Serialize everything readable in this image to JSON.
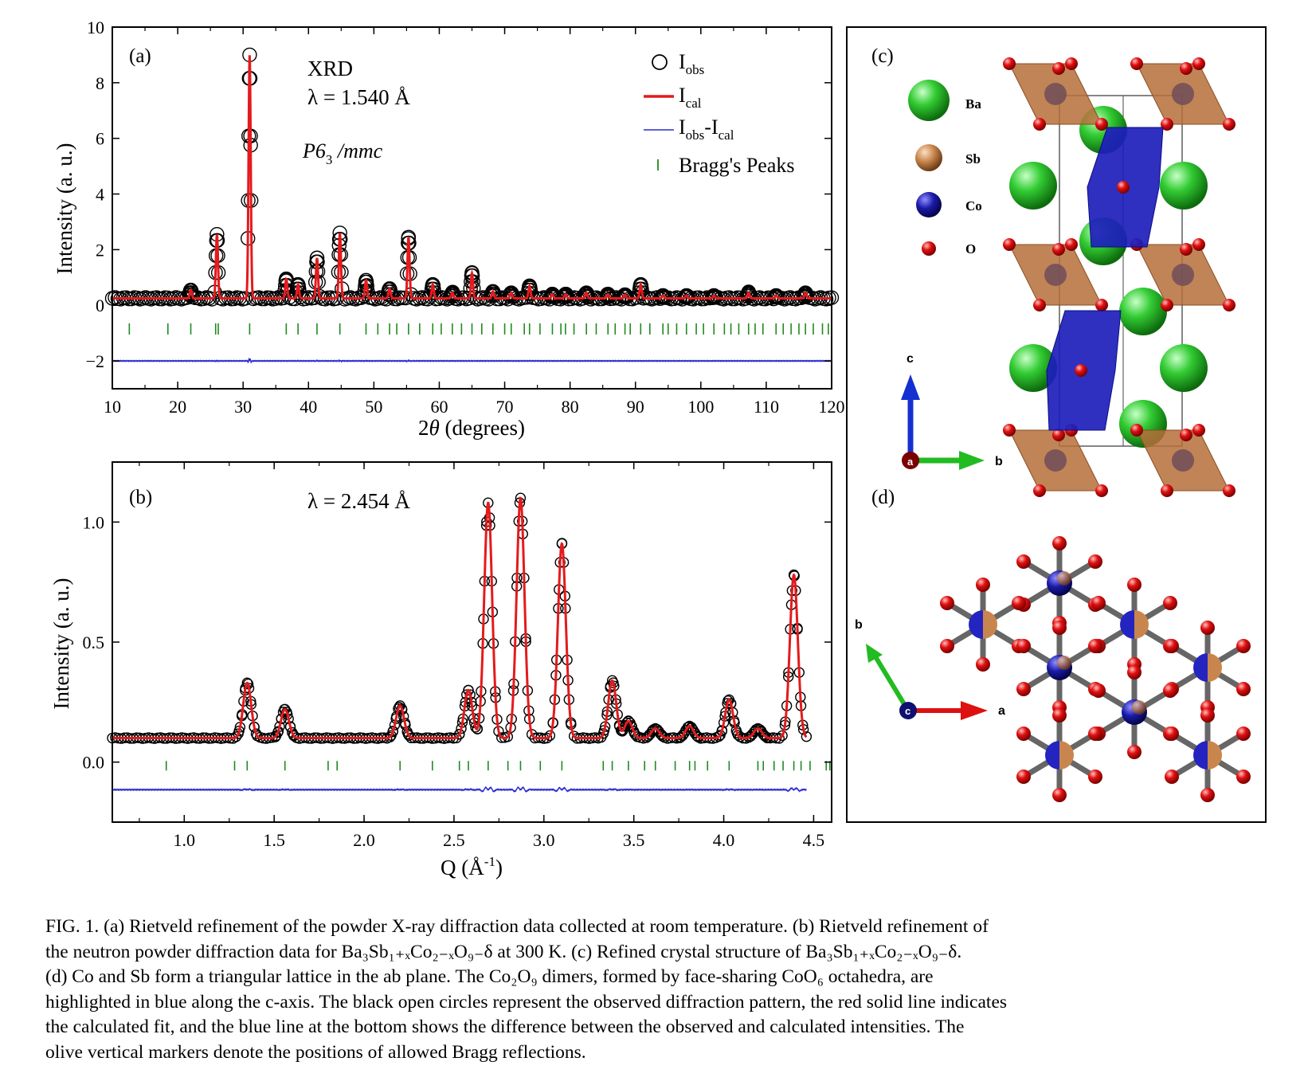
{
  "panels": {
    "a": {
      "label": "(a)",
      "title": "XRD",
      "wavelength": "λ = 1.540 Å",
      "space_group_prefix": "P6",
      "space_group_sub": "3",
      "space_group_suffix": " /mmc",
      "legend": [
        {
          "main": "I",
          "sub": "obs"
        },
        {
          "main": "I",
          "sub": "cal"
        },
        {
          "main": "I",
          "sub": "obs",
          "mid": "-I",
          "sub2": "cal"
        },
        {
          "main": "Bragg's Peaks"
        }
      ]
    },
    "b": {
      "label": "(b)",
      "wavelength": "λ = 2.454 Å"
    },
    "c": {
      "label": "(c)",
      "legend": [
        "Ba",
        "Sb",
        "Co",
        "O"
      ],
      "axes": [
        "c",
        "a",
        "b"
      ]
    },
    "d": {
      "label": "(d)",
      "axes": [
        "b",
        "c",
        "a"
      ]
    }
  },
  "colors": {
    "obs": "#000000",
    "cal": "#e41a1c",
    "diff": "#2b2bd0",
    "bragg": "#1f8a1f",
    "Ba": "#2ec42e",
    "Sb": "#c8864e",
    "Co": "#1a1aa8",
    "O": "#e01010"
  },
  "chart_data": [
    {
      "type": "line",
      "panel": "a",
      "xlabel_pre": "2",
      "xlabel_theta": "θ",
      "xlabel_post": " (degrees)",
      "ylabel": "Intensity (a. u.)",
      "xlim": [
        10,
        120
      ],
      "ylim": [
        -3,
        10
      ],
      "xticks": [
        "10",
        "20",
        "30",
        "40",
        "50",
        "60",
        "70",
        "80",
        "90",
        "100",
        "110",
        "120"
      ],
      "yticks": [
        "−2",
        "0",
        "2",
        "4",
        "6",
        "8",
        "10"
      ],
      "background": 0.25,
      "peaks": [
        {
          "x": 22.0,
          "y": 0.55
        },
        {
          "x": 26.0,
          "y": 2.55
        },
        {
          "x": 31.0,
          "y": 9.0
        },
        {
          "x": 36.6,
          "y": 0.95
        },
        {
          "x": 38.4,
          "y": 0.75
        },
        {
          "x": 41.3,
          "y": 1.7
        },
        {
          "x": 44.8,
          "y": 2.6
        },
        {
          "x": 48.8,
          "y": 0.9
        },
        {
          "x": 52.4,
          "y": 0.6
        },
        {
          "x": 55.3,
          "y": 2.45
        },
        {
          "x": 59.0,
          "y": 0.75
        },
        {
          "x": 62.0,
          "y": 0.45
        },
        {
          "x": 65.0,
          "y": 1.15
        },
        {
          "x": 68.2,
          "y": 0.5
        },
        {
          "x": 71.0,
          "y": 0.45
        },
        {
          "x": 73.8,
          "y": 0.7
        },
        {
          "x": 77.3,
          "y": 0.4
        },
        {
          "x": 79.3,
          "y": 0.4
        },
        {
          "x": 82.5,
          "y": 0.45
        },
        {
          "x": 85.8,
          "y": 0.4
        },
        {
          "x": 88.4,
          "y": 0.38
        },
        {
          "x": 90.8,
          "y": 0.75
        },
        {
          "x": 94.2,
          "y": 0.35
        },
        {
          "x": 97.8,
          "y": 0.35
        },
        {
          "x": 102.0,
          "y": 0.35
        },
        {
          "x": 107.3,
          "y": 0.45
        },
        {
          "x": 111.5,
          "y": 0.35
        },
        {
          "x": 116.0,
          "y": 0.45
        }
      ],
      "bragg_offset": -0.85,
      "bragg_ticks": [
        12.6,
        18.5,
        22.0,
        25.8,
        26.2,
        31.0,
        36.6,
        38.4,
        41.3,
        44.8,
        48.8,
        50.6,
        52.4,
        53.5,
        55.3,
        57.0,
        59.0,
        60.3,
        62.0,
        63.4,
        65.0,
        66.5,
        68.2,
        70.0,
        71.0,
        73.0,
        73.8,
        75.4,
        77.3,
        78.6,
        79.3,
        80.6,
        82.5,
        84.0,
        85.8,
        86.9,
        88.4,
        89.2,
        90.8,
        92.2,
        94.2,
        95.0,
        96.3,
        97.8,
        99.3,
        100.4,
        102.0,
        103.6,
        104.6,
        105.8,
        107.3,
        108.3,
        109.5,
        111.5,
        112.6,
        113.8,
        115.0,
        116.0,
        117.2,
        118.6,
        119.5
      ],
      "difference_offset": -2.0
    },
    {
      "type": "line",
      "panel": "b",
      "xlabel_pre": "Q (Å",
      "xlabel_sup": "-1",
      "xlabel_post": ")",
      "ylabel": "Intensity (a. u.)",
      "xlim": [
        0.6,
        4.6
      ],
      "ylim": [
        -0.25,
        1.25
      ],
      "xticks": [
        "1.0",
        "1.5",
        "2.0",
        "2.5",
        "3.0",
        "3.5",
        "4.0",
        "4.5"
      ],
      "yticks": [
        "0.0",
        "0.5",
        "1.0"
      ],
      "background": 0.1,
      "peaks": [
        {
          "x": 1.35,
          "y": 0.33
        },
        {
          "x": 1.56,
          "y": 0.22
        },
        {
          "x": 2.2,
          "y": 0.235
        },
        {
          "x": 2.58,
          "y": 0.3
        },
        {
          "x": 2.69,
          "y": 1.08
        },
        {
          "x": 2.87,
          "y": 1.1
        },
        {
          "x": 3.1,
          "y": 0.91
        },
        {
          "x": 3.38,
          "y": 0.34
        },
        {
          "x": 3.47,
          "y": 0.17
        },
        {
          "x": 3.62,
          "y": 0.14
        },
        {
          "x": 3.81,
          "y": 0.15
        },
        {
          "x": 4.03,
          "y": 0.26
        },
        {
          "x": 4.19,
          "y": 0.14
        },
        {
          "x": 4.39,
          "y": 0.78
        }
      ],
      "x_end": 4.46,
      "bragg_offset": -0.015,
      "bragg_ticks": [
        0.9,
        1.28,
        1.35,
        1.56,
        1.8,
        1.85,
        2.2,
        2.38,
        2.53,
        2.58,
        2.69,
        2.8,
        2.87,
        2.98,
        3.1,
        3.33,
        3.38,
        3.47,
        3.56,
        3.62,
        3.73,
        3.81,
        3.84,
        3.91,
        4.03,
        4.19,
        4.22,
        4.28,
        4.33,
        4.39,
        4.43,
        4.48,
        4.57,
        4.59
      ],
      "difference_offset": -0.115
    }
  ],
  "caption": {
    "line1": "FIG. 1. (a) Rietveld refinement of the powder X-ray diffraction data collected at room temperature. (b) Rietveld refinement of",
    "line2": "the neutron powder diffraction data for Ba₃Sb₁₊ₓCo₂₋ₓO₉₋δ at 300 K. (c) Refined crystal structure of Ba₃Sb₁₊ₓCo₂₋ₓO₉₋δ.",
    "line3": "(d) Co and Sb form a triangular lattice in the ab plane.  The Co₂O₉ dimers, formed by face-sharing CoO₆ octahedra, are",
    "line4": "highlighted in blue along the c-axis. The black open circles represent the observed diffraction pattern, the red solid line indicates",
    "line5": "the calculated fit, and the blue line at the bottom shows the difference between the observed and calculated intensities.  The",
    "line6": "olive vertical markers denote the positions of allowed Bragg reflections."
  }
}
